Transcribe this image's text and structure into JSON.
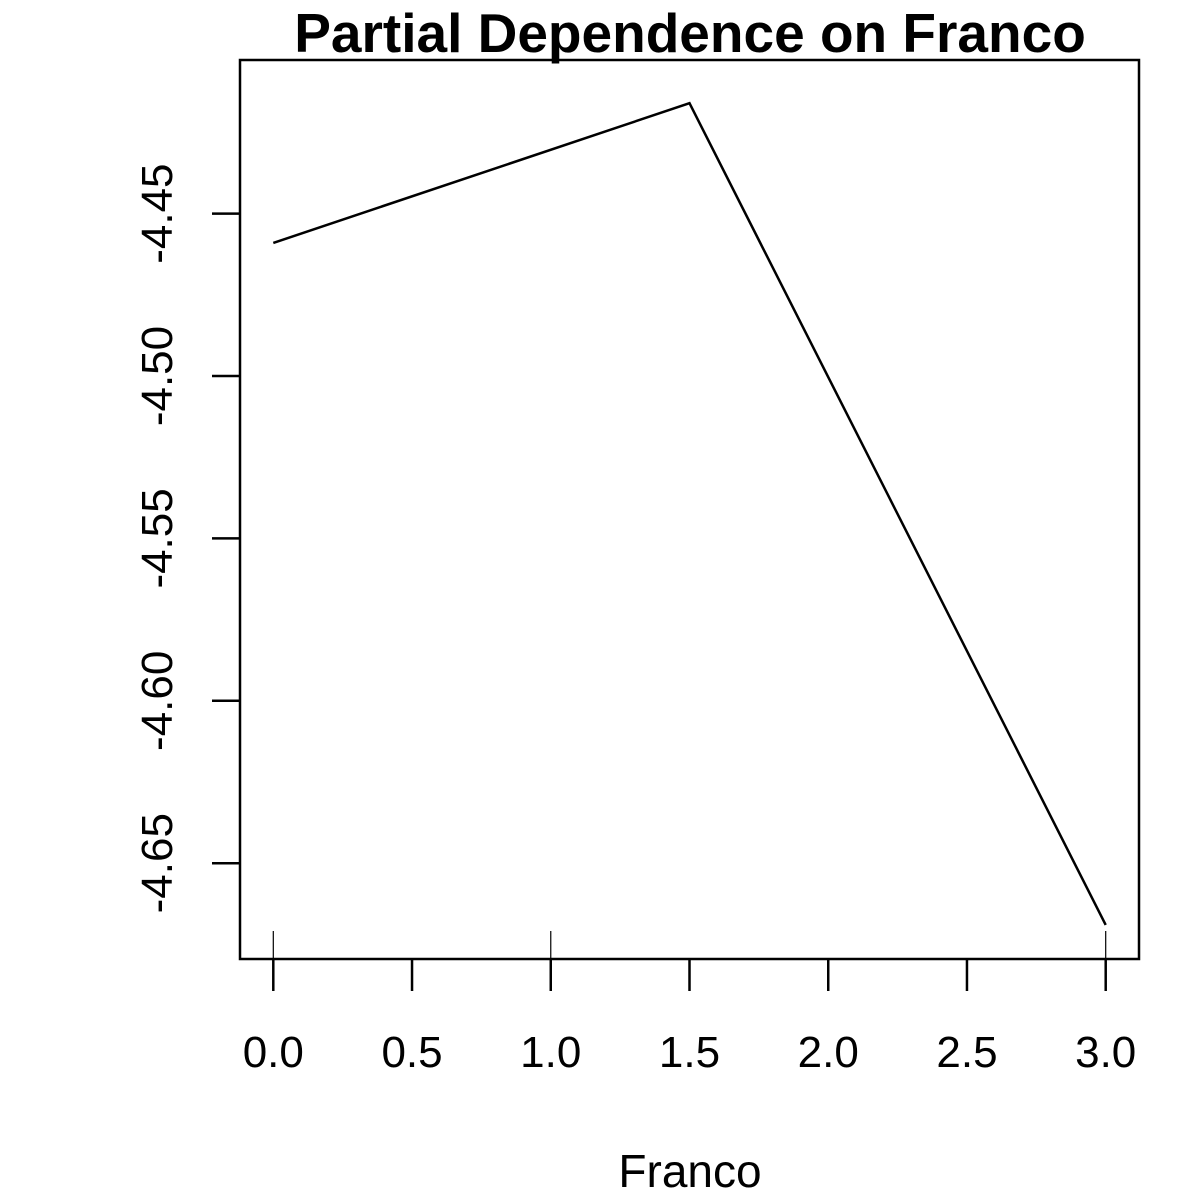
{
  "chart_data": {
    "type": "line",
    "title": "Partial Dependence on Franco",
    "xlabel": "Franco",
    "ylabel": "",
    "xlim": [
      -0.12,
      3.12
    ],
    "ylim": [
      -4.6795,
      -4.4027
    ],
    "x_ticks": [
      0.0,
      0.5,
      1.0,
      1.5,
      2.0,
      2.5,
      3.0
    ],
    "x_tick_labels": [
      "0.0",
      "0.5",
      "1.0",
      "1.5",
      "2.0",
      "2.5",
      "3.0"
    ],
    "y_ticks": [
      -4.45,
      -4.5,
      -4.55,
      -4.6,
      -4.65
    ],
    "y_tick_labels": [
      "-4.45",
      "-4.50",
      "-4.55",
      "-4.60",
      "-4.65"
    ],
    "rug": [
      0,
      1,
      3
    ],
    "series": [
      {
        "x": [
          0.0,
          1.5,
          3.0
        ],
        "y": [
          -4.459,
          -4.416,
          -4.669
        ]
      }
    ],
    "grid": false,
    "legend": "none"
  }
}
